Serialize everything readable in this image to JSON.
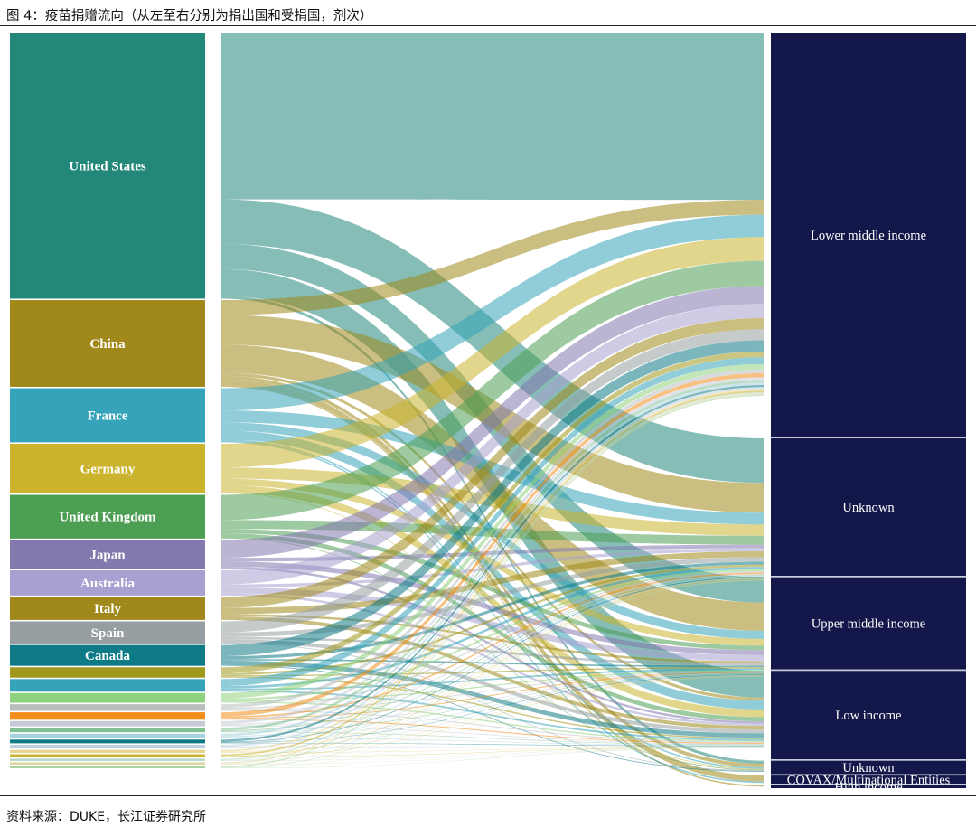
{
  "caption": "图 4：疫苗捐赠流向（从左至右分别为捐出国和受捐国，剂次）",
  "source": "资料来源：DUKE，长江证券研究所",
  "chart_data": {
    "type": "sankey",
    "title": "图 4：疫苗捐赠流向（从左至右分别为捐出国和受捐国，剂次）",
    "units": "剂次 (share of total doses, %)",
    "donors": [
      {
        "name": "United States",
        "value": 35.8,
        "color": "#23877a",
        "label": "United States"
      },
      {
        "name": "China",
        "value": 11.7,
        "color": "#a0891a",
        "label": "China"
      },
      {
        "name": "France",
        "value": 7.3,
        "color": "#35a4ba",
        "label": "France"
      },
      {
        "name": "Germany",
        "value": 6.7,
        "color": "#cbb32d",
        "label": "Germany"
      },
      {
        "name": "United Kingdom",
        "value": 5.9,
        "color": "#4c9f52",
        "label": "United Kingdom"
      },
      {
        "name": "Japan",
        "value": 3.9,
        "color": "#8479ae",
        "label": "Japan"
      },
      {
        "name": "Australia",
        "value": 3.4,
        "color": "#a8a0d0",
        "label": "Australia"
      },
      {
        "name": "Italy",
        "value": 3.1,
        "color": "#a0891a",
        "label": "Italy"
      },
      {
        "name": "Spain",
        "value": 3.0,
        "color": "#969ea1",
        "label": "Spain"
      },
      {
        "name": "Canada",
        "value": 2.8,
        "color": "#0e7a86",
        "label": "Canada"
      },
      {
        "name": "Other 1",
        "value": 1.4,
        "color": "#a0981c",
        "label": ""
      },
      {
        "name": "Other 2",
        "value": 1.7,
        "color": "#35a4ba",
        "label": ""
      },
      {
        "name": "Other 3",
        "value": 1.3,
        "color": "#8fd27e",
        "label": ""
      },
      {
        "name": "Other 4",
        "value": 0.9,
        "color": "#b8bdbe",
        "label": ""
      },
      {
        "name": "Other 5",
        "value": 1.0,
        "color": "#f28e1c",
        "label": ""
      },
      {
        "name": "Other 6",
        "value": 0.7,
        "color": "#c5cad6",
        "label": ""
      },
      {
        "name": "Other 7",
        "value": 0.6,
        "color": "#7fbf8f",
        "label": ""
      },
      {
        "name": "Other 8",
        "value": 0.6,
        "color": "#a5d2dc",
        "label": ""
      },
      {
        "name": "Other 9",
        "value": 0.5,
        "color": "#0e7a86",
        "label": ""
      },
      {
        "name": "Other 10",
        "value": 0.5,
        "color": "#bcd0df",
        "label": ""
      },
      {
        "name": "Other 11",
        "value": 0.4,
        "color": "#e5d48a",
        "label": ""
      },
      {
        "name": "Other 12",
        "value": 0.4,
        "color": "#cbb32d",
        "label": ""
      },
      {
        "name": "Other 13",
        "value": 0.3,
        "color": "#b4d8c5",
        "label": ""
      },
      {
        "name": "Other 14",
        "value": 0.3,
        "color": "#ded6a0",
        "label": ""
      },
      {
        "name": "Other 15",
        "value": 0.3,
        "color": "#a9d3a0",
        "label": ""
      }
    ],
    "recipients": [
      {
        "name": "Lower middle income",
        "value": 54.3,
        "label": "Lower middle income"
      },
      {
        "name": "Unknown",
        "value": 18.5,
        "label": "Unknown"
      },
      {
        "name": "Upper middle income",
        "value": 12.4,
        "label": "Upper middle income"
      },
      {
        "name": "Low income",
        "value": 11.9,
        "label": "Low income"
      },
      {
        "name": "Unknown (2)",
        "value": 1.8,
        "label": "Unknown"
      },
      {
        "name": "COVAX/Multinational Entities",
        "value": 1.1,
        "label": "COVAX/Multinational Entities"
      },
      {
        "name": "High income",
        "value": 0.4,
        "label": "High income"
      }
    ],
    "recipient_color": "#13174a",
    "flows": [
      {
        "source": "United States",
        "targets": [
          22.4,
          6.0,
          3.4,
          3.6,
          0.4
        ]
      },
      {
        "source": "China",
        "targets": [
          2.0,
          4.0,
          3.8,
          0.4,
          0.5,
          0.8,
          0.2
        ]
      },
      {
        "source": "France",
        "targets": [
          3.0,
          1.6,
          1.1,
          1.2,
          0.2,
          0.2
        ]
      },
      {
        "source": "Germany",
        "targets": [
          3.2,
          1.5,
          0.9,
          1.0,
          0.1
        ]
      },
      {
        "source": "United Kingdom",
        "targets": [
          3.4,
          1.2,
          0.6,
          0.6,
          0.1
        ]
      },
      {
        "source": "Japan",
        "targets": [
          2.4,
          0.5,
          0.7,
          0.3
        ]
      },
      {
        "source": "Australia",
        "targets": [
          1.9,
          0.4,
          0.8,
          0.3
        ]
      },
      {
        "source": "Italy",
        "targets": [
          1.5,
          0.8,
          0.3,
          0.5
        ]
      },
      {
        "source": "Spain",
        "targets": [
          1.5,
          0.6,
          0.3,
          0.5,
          0.1
        ]
      },
      {
        "source": "Canada",
        "targets": [
          1.5,
          0.4,
          0.2,
          0.6,
          0.1
        ]
      }
    ]
  }
}
